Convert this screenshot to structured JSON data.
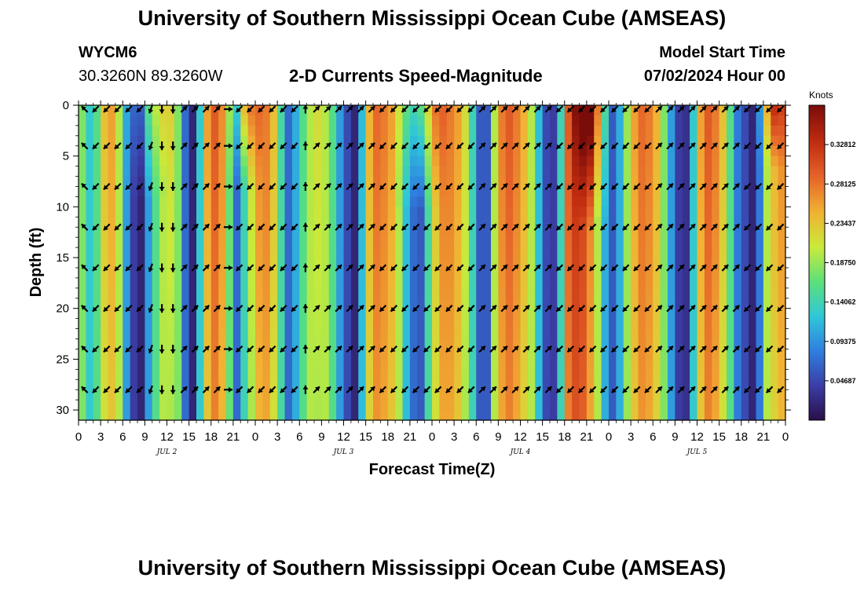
{
  "page": {
    "title_top": "University of Southern Mississippi Ocean Cube (AMSEAS)",
    "title_bottom": "University of Southern Mississippi Ocean Cube (AMSEAS)",
    "station_id": "WYCM6",
    "station_coords": "30.3260N  89.3260W",
    "plot_title": "2-D Currents Speed-Magnitude",
    "model_start_label": "Model Start Time",
    "model_start_value": "07/02/2024 Hour 00"
  },
  "chart_data": {
    "type": "heatmap",
    "title": "2-D Currents Speed-Magnitude",
    "xlabel": "Forecast Time(Z)",
    "ylabel": "Depth (ft)",
    "x_tick_labels": [
      "0",
      "3",
      "6",
      "9",
      "12",
      "15",
      "18",
      "21",
      "0",
      "3",
      "6",
      "9",
      "12",
      "15",
      "18",
      "21",
      "0",
      "3",
      "6",
      "9",
      "12",
      "15",
      "18",
      "21",
      "0",
      "3",
      "6",
      "9",
      "12",
      "15",
      "18",
      "21",
      "0"
    ],
    "x_range_hours": [
      0,
      96
    ],
    "date_labels": [
      {
        "label": "JUL 2",
        "hour": 12
      },
      {
        "label": "JUL 3",
        "hour": 36
      },
      {
        "label": "JUL 4",
        "hour": 60
      },
      {
        "label": "JUL 5",
        "hour": 84
      }
    ],
    "y_ticks": [
      0,
      5,
      10,
      15,
      20,
      25,
      30
    ],
    "y_range_ft": [
      0,
      31
    ],
    "colorbar": {
      "title": "Knots",
      "ticks": [
        "0.04687",
        "0.09375",
        "0.14062",
        "0.18750",
        "0.23437",
        "0.28125",
        "0.32812"
      ],
      "range": [
        0,
        0.375
      ],
      "colors": [
        "#2a0f4a",
        "#3b3ea6",
        "#2f7fe0",
        "#2fc7d8",
        "#5ce07a",
        "#c9ea3a",
        "#f1b233",
        "#e6652a",
        "#c22d10",
        "#7a0c0a"
      ]
    },
    "speed_profile_knots": [
      0.18,
      0.13,
      0.16,
      0.24,
      0.26,
      0.2,
      0.1,
      0.04,
      0.02,
      0.1,
      0.16,
      0.2,
      0.22,
      0.18,
      0.07,
      0.02,
      0.13,
      0.26,
      0.3,
      0.27,
      0.17,
      0.07,
      0.14,
      0.22,
      0.27,
      0.28,
      0.24,
      0.15,
      0.07,
      0.11,
      0.16,
      0.2,
      0.22,
      0.2,
      0.16,
      0.1,
      0.05,
      0.02,
      0.12,
      0.25,
      0.29,
      0.28,
      0.26,
      0.2,
      0.12,
      0.07,
      0.06,
      0.15,
      0.24,
      0.28,
      0.28,
      0.26,
      0.22,
      0.14,
      0.06,
      0.06,
      0.2,
      0.28,
      0.3,
      0.28,
      0.25,
      0.2,
      0.12,
      0.05,
      0.04,
      0.14,
      0.3,
      0.33,
      0.32,
      0.28,
      0.2,
      0.11,
      0.06,
      0.11,
      0.19,
      0.26,
      0.29,
      0.28,
      0.25,
      0.18,
      0.1,
      0.04,
      0.03,
      0.13,
      0.26,
      0.3,
      0.28,
      0.24,
      0.16,
      0.08,
      0.05,
      0.02,
      0.08,
      0.2,
      0.25,
      0.27,
      0.29
    ],
    "surface_boost_windows": [
      {
        "center_hour": 9.5,
        "width_hours": 7,
        "boost_knots": 0.06,
        "depth_ft": 9
      },
      {
        "center_hour": 22.5,
        "width_hours": 5,
        "boost_knots": 0.1,
        "depth_ft": 8
      },
      {
        "center_hour": 46.5,
        "width_hours": 7,
        "boost_knots": 0.1,
        "depth_ft": 10
      },
      {
        "center_hour": 69.5,
        "width_hours": 6,
        "boost_knots": 0.12,
        "depth_ft": 12
      },
      {
        "center_hour": 94.5,
        "width_hours": 5,
        "boost_knots": 0.08,
        "depth_ft": 6
      }
    ],
    "vector_depths_ft": [
      0,
      4,
      8,
      12,
      16,
      20,
      24,
      28
    ],
    "vector_direction_deg": [
      315,
      225,
      225,
      225,
      225,
      225,
      200,
      180,
      180,
      45,
      45,
      45,
      45,
      90,
      225,
      225,
      225,
      225,
      225,
      225,
      0,
      45,
      45,
      45,
      45,
      45,
      45,
      225,
      225,
      225,
      225,
      225,
      225,
      225,
      225,
      225,
      45,
      45,
      45,
      45,
      45,
      45,
      45,
      225,
      225,
      225,
      225,
      225,
      225,
      225,
      225,
      225,
      45,
      45,
      45,
      45,
      45,
      45,
      45,
      45,
      225,
      225,
      225,
      225
    ]
  }
}
